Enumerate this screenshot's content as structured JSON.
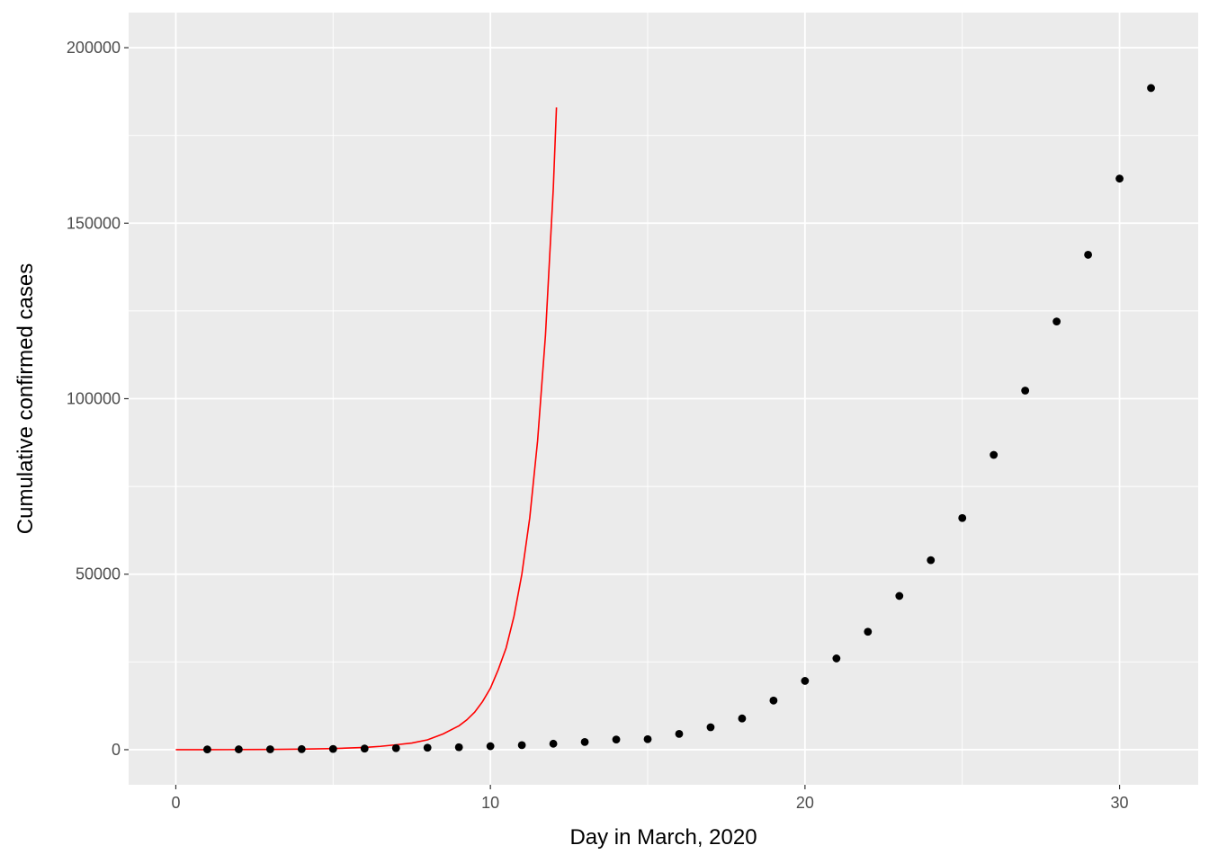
{
  "chart_data": {
    "type": "scatter",
    "title": "",
    "xlabel": "Day in March, 2020",
    "ylabel": "Cumulative confirmed cases",
    "xlim": [
      -1.5,
      32.5
    ],
    "ylim": [
      -10000,
      210000
    ],
    "x_ticks": [
      0,
      10,
      20,
      30
    ],
    "y_ticks": [
      0,
      50000,
      100000,
      150000,
      200000
    ],
    "x_tick_labels": [
      "0",
      "10",
      "20",
      "30"
    ],
    "y_tick_labels": [
      "0",
      "50000",
      "100000",
      "150000",
      "200000"
    ],
    "grid": true,
    "legend": "none",
    "panel_color": "#ebebeb",
    "grid_color": "#ffffff",
    "series": [
      {
        "kind": "points",
        "color": "#000000",
        "x": [
          1,
          2,
          3,
          4,
          5,
          6,
          7,
          8,
          9,
          10,
          11,
          12,
          13,
          14,
          15,
          16,
          17,
          18,
          19,
          20,
          21,
          22,
          23,
          24,
          25,
          26,
          27,
          28,
          29,
          30,
          31
        ],
        "y": [
          75,
          100,
          125,
          160,
          220,
          320,
          440,
          560,
          700,
          1000,
          1300,
          1700,
          2200,
          2900,
          3000,
          4500,
          6400,
          8900,
          14000,
          19600,
          26000,
          33600,
          43800,
          54000,
          66000,
          84000,
          102300,
          122000,
          141000,
          162700,
          188500
        ]
      },
      {
        "kind": "line",
        "color": "#ff0000",
        "x": [
          0,
          1,
          2,
          3,
          4,
          5,
          5.5,
          6,
          6.5,
          7,
          7.5,
          8,
          8.5,
          9,
          9.25,
          9.5,
          9.75,
          10,
          10.25,
          10.5,
          10.75,
          11,
          11.25,
          11.5,
          11.75,
          12,
          12.1
        ],
        "y": [
          0,
          5,
          25,
          70,
          160,
          320,
          480,
          650,
          950,
          1400,
          1900,
          2800,
          4500,
          6800,
          8500,
          10700,
          13700,
          17500,
          22800,
          29000,
          38000,
          50000,
          66000,
          88000,
          118000,
          160000,
          183000
        ]
      }
    ]
  }
}
